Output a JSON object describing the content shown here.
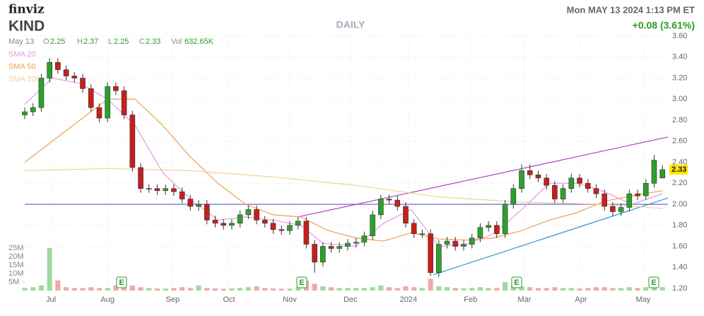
{
  "header": {
    "logo": "finviz",
    "ticker": "KIND",
    "period": "DAILY",
    "datetime": "Mon MAY 13 2024 1:13 PM ET",
    "change": "+0.08 (3.61%)"
  },
  "ohlc": {
    "date": "May 13",
    "open_label": "O",
    "open": 2.25,
    "high_label": "H",
    "high": 2.37,
    "low_label": "L",
    "low": 2.25,
    "close_label": "C",
    "close": 2.33,
    "volume_label": "Vol",
    "volume": "632.65K"
  },
  "chart_data": {
    "type": "candlestick",
    "grid": true,
    "up_color": "#2ca02c",
    "down_color": "#c81e1e",
    "xlim": [
      0,
      233
    ],
    "ylim": [
      1.2,
      3.6
    ],
    "yticks": [
      {
        "value": 1.2,
        "label": "1.20"
      },
      {
        "value": 1.4,
        "label": "1.40"
      },
      {
        "value": 1.6,
        "label": "1.60"
      },
      {
        "value": 1.8,
        "label": "1.80"
      },
      {
        "value": 2.0,
        "label": "2.00"
      },
      {
        "value": 2.2,
        "label": "2.20"
      },
      {
        "value": 2.4,
        "label": "2.40"
      },
      {
        "value": 2.6,
        "label": "2.60"
      },
      {
        "value": 2.8,
        "label": "2.80"
      },
      {
        "value": 3.0,
        "label": "3.00"
      },
      {
        "value": 3.2,
        "label": "3.20"
      },
      {
        "value": 3.4,
        "label": "3.40"
      },
      {
        "value": 3.6,
        "label": "3.60"
      }
    ],
    "xticks": [
      {
        "value": 9.5,
        "label": "Jul"
      },
      {
        "value": 30,
        "label": "Aug"
      },
      {
        "value": 53.6,
        "label": "Sep"
      },
      {
        "value": 74,
        "label": "Oct"
      },
      {
        "value": 96,
        "label": "Nov"
      },
      {
        "value": 118,
        "label": "Dec"
      },
      {
        "value": 139,
        "label": "2024"
      },
      {
        "value": 161.5,
        "label": "Feb"
      },
      {
        "value": 181,
        "label": "Mar"
      },
      {
        "value": 201.5,
        "label": "Apr"
      },
      {
        "value": 224,
        "label": "May"
      }
    ],
    "x": [
      0,
      3,
      6,
      9,
      12,
      15,
      18,
      21,
      24,
      27,
      30,
      33,
      36,
      39,
      42,
      45,
      48,
      51,
      54,
      57,
      60,
      63,
      66,
      69,
      72,
      75,
      78,
      81,
      84,
      87,
      90,
      93,
      96,
      99,
      102,
      105,
      108,
      111,
      114,
      117,
      120,
      123,
      126,
      129,
      132,
      135,
      138,
      141,
      144,
      147,
      150,
      153,
      156,
      159,
      162,
      165,
      168,
      171,
      174,
      177,
      180,
      183,
      186,
      189,
      192,
      195,
      198,
      201,
      204,
      207,
      210,
      213,
      216,
      219,
      222,
      225,
      228,
      231
    ],
    "open": [
      2.85,
      2.88,
      2.92,
      3.2,
      3.35,
      3.28,
      3.22,
      3.2,
      3.1,
      2.92,
      2.82,
      3.12,
      3.08,
      2.85,
      2.35,
      2.15,
      2.15,
      2.13,
      2.15,
      2.12,
      2.05,
      1.98,
      2.0,
      1.85,
      1.82,
      1.8,
      1.82,
      1.9,
      1.95,
      1.85,
      1.82,
      1.76,
      1.75,
      1.8,
      1.84,
      1.62,
      1.45,
      1.6,
      1.58,
      1.6,
      1.63,
      1.64,
      1.7,
      1.9,
      2.05,
      2.04,
      1.98,
      1.82,
      1.72,
      1.72,
      1.35,
      1.62,
      1.65,
      1.6,
      1.62,
      1.68,
      1.78,
      1.8,
      1.72,
      2.0,
      2.15,
      2.32,
      2.28,
      2.25,
      2.18,
      2.05,
      2.15,
      2.25,
      2.2,
      2.15,
      2.1,
      1.98,
      1.93,
      1.97,
      2.1,
      2.08,
      2.2,
      2.25
    ],
    "high": [
      2.92,
      2.96,
      3.24,
      3.39,
      3.39,
      3.32,
      3.26,
      3.24,
      3.14,
      2.96,
      3.16,
      3.16,
      3.12,
      2.89,
      2.39,
      2.19,
      2.19,
      2.19,
      2.19,
      2.16,
      2.09,
      2.04,
      2.04,
      1.89,
      1.86,
      1.86,
      1.94,
      1.99,
      1.99,
      1.89,
      1.86,
      1.8,
      1.84,
      1.88,
      1.88,
      1.66,
      1.64,
      1.64,
      1.64,
      1.67,
      1.68,
      1.74,
      1.94,
      2.09,
      2.09,
      2.08,
      2.02,
      1.86,
      1.76,
      1.76,
      1.66,
      1.69,
      1.69,
      1.66,
      1.72,
      1.82,
      1.84,
      1.84,
      2.04,
      2.19,
      2.38,
      2.38,
      2.32,
      2.29,
      2.22,
      2.19,
      2.29,
      2.29,
      2.24,
      2.19,
      2.14,
      2.02,
      2.01,
      2.14,
      2.14,
      2.24,
      2.47,
      2.37
    ],
    "low": [
      2.81,
      2.84,
      2.88,
      3.16,
      3.24,
      3.18,
      3.16,
      3.06,
      2.88,
      2.78,
      2.78,
      3.04,
      2.81,
      2.31,
      2.11,
      2.11,
      2.09,
      2.09,
      2.08,
      2.01,
      1.94,
      1.94,
      1.81,
      1.78,
      1.76,
      1.76,
      1.78,
      1.86,
      1.81,
      1.78,
      1.72,
      1.71,
      1.71,
      1.76,
      1.58,
      1.35,
      1.41,
      1.54,
      1.54,
      1.56,
      1.59,
      1.6,
      1.66,
      1.86,
      2.0,
      1.94,
      1.78,
      1.68,
      1.68,
      1.32,
      1.31,
      1.58,
      1.56,
      1.56,
      1.58,
      1.64,
      1.74,
      1.68,
      1.68,
      1.96,
      2.11,
      2.24,
      2.21,
      2.14,
      2.01,
      2.01,
      2.11,
      2.16,
      2.11,
      2.06,
      1.94,
      1.89,
      1.89,
      1.93,
      2.04,
      2.04,
      2.16,
      2.25
    ],
    "close": [
      2.88,
      2.92,
      3.2,
      3.35,
      3.28,
      3.22,
      3.2,
      3.1,
      2.92,
      2.82,
      3.12,
      3.08,
      2.85,
      2.35,
      2.15,
      2.15,
      2.13,
      2.15,
      2.12,
      2.05,
      1.98,
      2.0,
      1.85,
      1.82,
      1.8,
      1.82,
      1.9,
      1.95,
      1.85,
      1.82,
      1.76,
      1.75,
      1.8,
      1.84,
      1.62,
      1.45,
      1.6,
      1.58,
      1.6,
      1.63,
      1.64,
      1.7,
      1.9,
      2.05,
      2.04,
      1.98,
      1.82,
      1.72,
      1.72,
      1.35,
      1.62,
      1.65,
      1.6,
      1.62,
      1.68,
      1.78,
      1.8,
      1.72,
      2.0,
      2.15,
      2.32,
      2.28,
      2.25,
      2.18,
      2.05,
      2.15,
      2.25,
      2.2,
      2.15,
      2.1,
      1.98,
      1.93,
      1.97,
      2.1,
      2.08,
      2.2,
      2.42,
      2.33
    ],
    "volume": [
      1.5,
      2,
      3,
      25,
      6,
      2,
      1.5,
      1.5,
      2,
      1.5,
      1.5,
      3,
      8,
      3,
      2,
      1.5,
      1.2,
      1.2,
      1.5,
      2,
      1.5,
      3,
      1.5,
      1.2,
      1,
      1.2,
      1.5,
      2,
      2.5,
      1.5,
      1.2,
      1,
      1.2,
      2,
      6,
      4,
      2.5,
      2,
      1.5,
      1.5,
      1.5,
      1.5,
      2,
      3,
      2,
      1.5,
      2.5,
      2,
      1.5,
      7,
      2.5,
      2,
      1.5,
      1.2,
      1.5,
      2,
      1.5,
      1.5,
      5,
      3,
      2.5,
      2,
      1.5,
      1.5,
      2,
      1.5,
      1.5,
      1.2,
      1.5,
      2,
      2,
      1.5,
      1.5,
      2,
      1.5,
      2,
      4,
      2
    ],
    "vlim": [
      0,
      25
    ],
    "vticks": [
      {
        "value": 5,
        "label": "5M"
      },
      {
        "value": 10,
        "label": "10M"
      },
      {
        "value": 15,
        "label": "15M"
      },
      {
        "value": 20,
        "label": "20M"
      },
      {
        "value": 25,
        "label": "25M"
      }
    ],
    "series": [
      {
        "name": "SMA 20",
        "color": "#e39be3",
        "x": [
          0,
          10,
          20,
          30,
          40,
          50,
          60,
          70,
          80,
          90,
          100,
          108,
          120,
          130,
          140,
          150,
          160,
          170,
          180,
          190,
          200,
          210,
          220,
          231
        ],
        "values": [
          2.95,
          3.2,
          3.15,
          3.0,
          2.75,
          2.3,
          2.05,
          1.85,
          1.88,
          1.85,
          1.8,
          1.63,
          1.6,
          1.82,
          1.95,
          1.6,
          1.62,
          1.72,
          1.95,
          2.2,
          2.2,
          2.12,
          2.0,
          2.1
        ]
      },
      {
        "name": "SMA 50",
        "color": "#f0a050",
        "x": [
          0,
          15,
          30,
          40,
          50,
          60,
          70,
          80,
          90,
          100,
          110,
          120,
          130,
          140,
          150,
          160,
          170,
          180,
          190,
          200,
          210,
          220,
          231
        ],
        "values": [
          2.4,
          2.7,
          3.0,
          3.0,
          2.75,
          2.45,
          2.2,
          2.0,
          1.9,
          1.88,
          1.75,
          1.68,
          1.65,
          1.73,
          1.67,
          1.66,
          1.68,
          1.75,
          1.85,
          1.92,
          2.03,
          2.08,
          2.13
        ]
      },
      {
        "name": "SMA 200",
        "color": "#f3cf98",
        "x": [
          0,
          30,
          60,
          90,
          120,
          150,
          180,
          210,
          231
        ],
        "values": [
          2.32,
          2.34,
          2.32,
          2.26,
          2.18,
          2.07,
          2.02,
          2.0,
          1.96
        ]
      }
    ],
    "lines": [
      {
        "color": "#6a6ad0",
        "x": [
          0,
          233
        ],
        "values": [
          2.0,
          2.0
        ]
      },
      {
        "color": "#b040c8",
        "x": [
          99,
          233
        ],
        "values": [
          1.88,
          2.64
        ]
      },
      {
        "color": "#2a9ad8",
        "x": [
          148,
          233
        ],
        "values": [
          1.33,
          2.06
        ]
      }
    ]
  }
}
